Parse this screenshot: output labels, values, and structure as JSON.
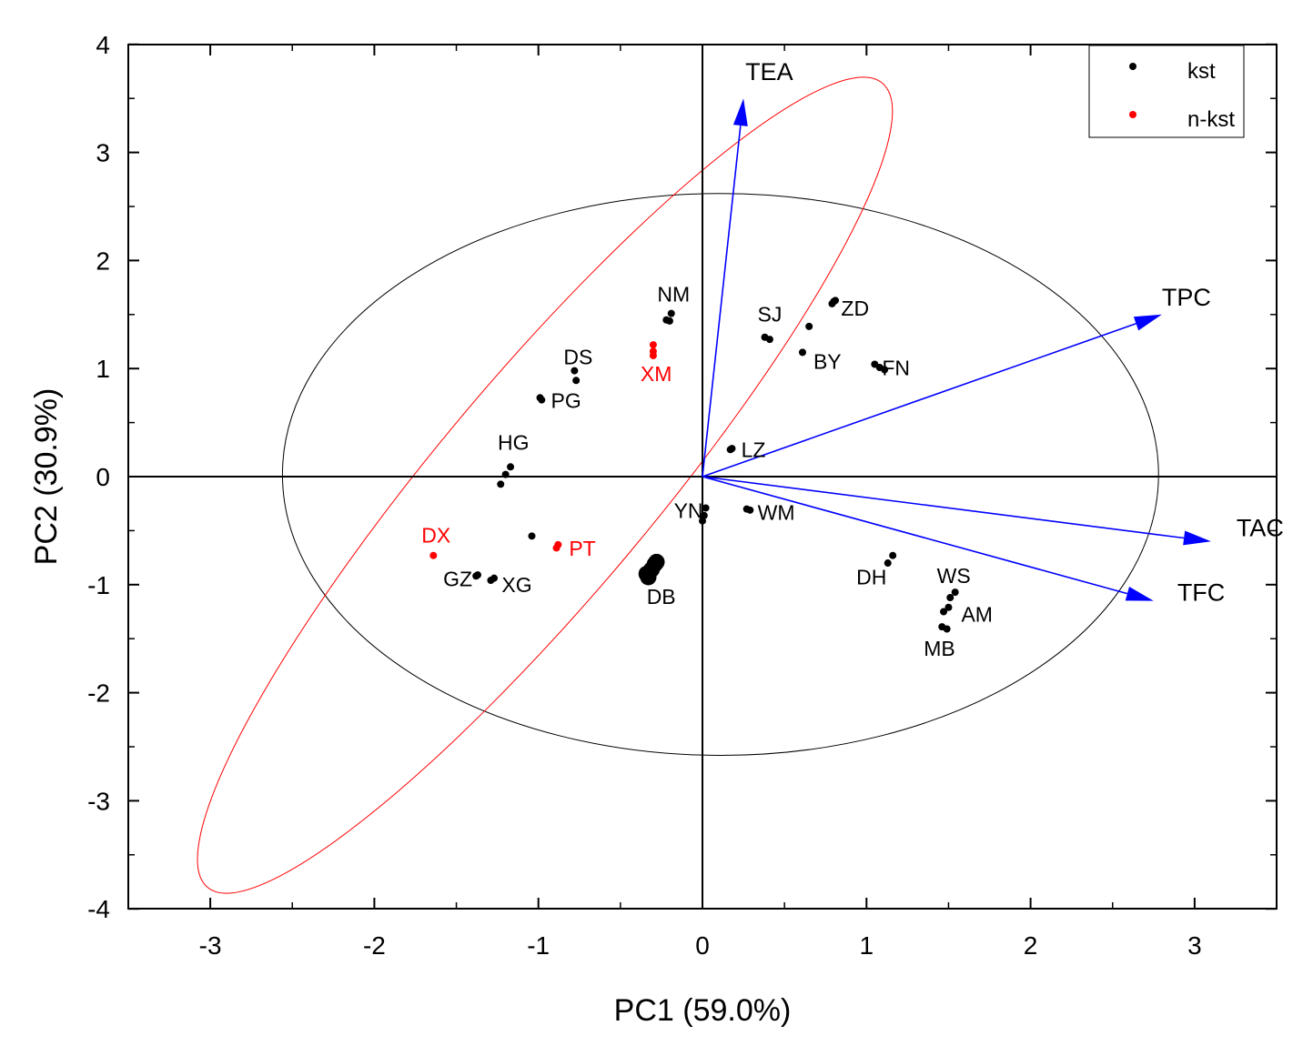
{
  "chart_data": {
    "type": "scatter",
    "title": "",
    "xlabel": "PC1 (59.0%)",
    "ylabel": "PC2 (30.9%)",
    "xlim": [
      -3.5,
      3.5
    ],
    "ylim": [
      -4,
      4
    ],
    "xticks": [
      -3,
      -2,
      -1,
      0,
      1,
      2,
      3
    ],
    "yticks": [
      -4,
      -3,
      -2,
      -1,
      0,
      1,
      2,
      3,
      4
    ],
    "colors": {
      "kst": "#000000",
      "n-kst": "#ff0000",
      "vector": "#0000ff"
    },
    "legend": {
      "position": "top-right",
      "entries": [
        {
          "name": "kst",
          "color": "#000000"
        },
        {
          "name": "n-kst",
          "color": "#ff0000"
        }
      ]
    },
    "series": [
      {
        "name": "kst",
        "color": "#000000",
        "points": [
          {
            "label": "NM",
            "x": -0.22,
            "y": 1.45
          },
          {
            "label": "",
            "x": -0.19,
            "y": 1.51
          },
          {
            "label": "",
            "x": -0.2,
            "y": 1.44
          },
          {
            "label": "DS",
            "x": -0.78,
            "y": 0.98
          },
          {
            "label": "",
            "x": -0.77,
            "y": 0.89
          },
          {
            "label": "PG",
            "x": -0.99,
            "y": 0.73
          },
          {
            "label": "",
            "x": -0.98,
            "y": 0.71
          },
          {
            "label": "HG",
            "x": -1.17,
            "y": 0.09
          },
          {
            "label": "",
            "x": -1.2,
            "y": 0.02
          },
          {
            "label": "",
            "x": -1.23,
            "y": -0.07
          },
          {
            "label": "",
            "x": -1.04,
            "y": -0.55
          },
          {
            "label": "GZ",
            "x": -1.38,
            "y": -0.92
          },
          {
            "label": "",
            "x": -1.37,
            "y": -0.91
          },
          {
            "label": "XG",
            "x": -1.29,
            "y": -0.96
          },
          {
            "label": "",
            "x": -1.27,
            "y": -0.94
          },
          {
            "label": "DB",
            "x": -0.34,
            "y": -0.9
          },
          {
            "label": "",
            "x": -0.31,
            "y": -0.86
          },
          {
            "label": "",
            "x": -0.29,
            "y": -0.81
          },
          {
            "label": "",
            "x": -0.33,
            "y": -0.93
          },
          {
            "label": "",
            "x": -0.28,
            "y": -0.79
          },
          {
            "label": "YN",
            "x": 0.02,
            "y": -0.29
          },
          {
            "label": "",
            "x": 0.01,
            "y": -0.36
          },
          {
            "label": "",
            "x": 0.0,
            "y": -0.41
          },
          {
            "label": "WM",
            "x": 0.27,
            "y": -0.3
          },
          {
            "label": "",
            "x": 0.29,
            "y": -0.31
          },
          {
            "label": "LZ",
            "x": 0.17,
            "y": 0.25
          },
          {
            "label": "",
            "x": 0.18,
            "y": 0.26
          },
          {
            "label": "SJ",
            "x": 0.38,
            "y": 1.29
          },
          {
            "label": "",
            "x": 0.41,
            "y": 1.27
          },
          {
            "label": "BY",
            "x": 0.61,
            "y": 1.15
          },
          {
            "label": "",
            "x": 0.65,
            "y": 1.39
          },
          {
            "label": "ZD",
            "x": 0.79,
            "y": 1.6
          },
          {
            "label": "",
            "x": 0.8,
            "y": 1.62
          },
          {
            "label": "",
            "x": 0.81,
            "y": 1.63
          },
          {
            "label": "FN",
            "x": 1.05,
            "y": 1.04
          },
          {
            "label": "",
            "x": 1.08,
            "y": 1.01
          },
          {
            "label": "",
            "x": 1.11,
            "y": 0.99
          },
          {
            "label": "DH",
            "x": 1.16,
            "y": -0.73
          },
          {
            "label": "",
            "x": 1.13,
            "y": -0.8
          },
          {
            "label": "WS",
            "x": 1.54,
            "y": -1.07
          },
          {
            "label": "",
            "x": 1.51,
            "y": -1.12
          },
          {
            "label": "AM",
            "x": 1.5,
            "y": -1.21
          },
          {
            "label": "",
            "x": 1.47,
            "y": -1.25
          },
          {
            "label": "MB",
            "x": 1.46,
            "y": -1.39
          },
          {
            "label": "",
            "x": 1.49,
            "y": -1.41
          }
        ]
      },
      {
        "name": "n-kst",
        "color": "#ff0000",
        "points": [
          {
            "label": "XM",
            "x": -0.3,
            "y": 1.22
          },
          {
            "label": "",
            "x": -0.3,
            "y": 1.16
          },
          {
            "label": "",
            "x": -0.3,
            "y": 1.12
          },
          {
            "label": "PT",
            "x": -0.88,
            "y": -0.63
          },
          {
            "label": "",
            "x": -0.89,
            "y": -0.66
          },
          {
            "label": "DX",
            "x": -1.64,
            "y": -0.73
          }
        ]
      }
    ],
    "vectors": [
      {
        "name": "TEA",
        "x": 0.25,
        "y": 3.5
      },
      {
        "name": "TPC",
        "x": 2.8,
        "y": 1.5
      },
      {
        "name": "TAC",
        "x": 3.1,
        "y": -0.6
      },
      {
        "name": "TFC",
        "x": 2.75,
        "y": -1.15
      }
    ],
    "ellipses": [
      {
        "group": "kst",
        "color": "#000000",
        "center": [
          0.11,
          0.02
        ],
        "radii": [
          2.67,
          2.6
        ],
        "angle_deg": 0
      },
      {
        "group": "n-kst",
        "color": "#ff0000",
        "center": [
          -0.96,
          -0.08
        ],
        "radii": [
          3.2,
          1.0
        ],
        "angle_deg": 50
      }
    ]
  }
}
